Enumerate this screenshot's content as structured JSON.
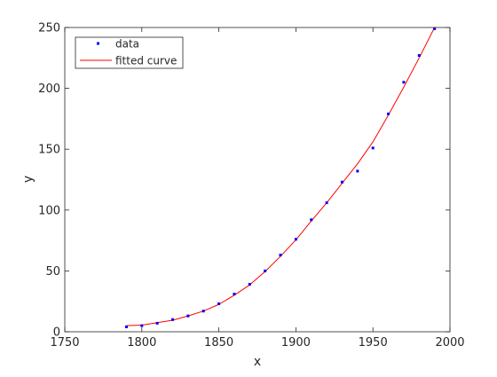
{
  "chart_data": {
    "type": "scatter",
    "xlabel": "x",
    "ylabel": "y",
    "xlim": [
      1750,
      2000
    ],
    "ylim": [
      0,
      250
    ],
    "xticks": [
      1750,
      1800,
      1850,
      1900,
      1950,
      2000
    ],
    "yticks": [
      0,
      50,
      100,
      150,
      200,
      250
    ],
    "grid": false,
    "legend_location": "top-left",
    "series": [
      {
        "name": "data",
        "kind": "markers",
        "color": "#0000ff",
        "x": [
          1790,
          1800,
          1810,
          1820,
          1830,
          1840,
          1850,
          1860,
          1870,
          1880,
          1890,
          1900,
          1910,
          1920,
          1930,
          1940,
          1950,
          1960,
          1970,
          1980,
          1990
        ],
        "y": [
          4,
          5,
          7,
          10,
          13,
          17,
          23,
          31,
          39,
          50,
          63,
          76,
          92,
          106,
          123,
          132,
          151,
          179,
          205,
          227,
          249
        ]
      },
      {
        "name": "fitted curve",
        "kind": "line",
        "color": "#ff0000",
        "x": [
          1790,
          1800,
          1810,
          1820,
          1830,
          1840,
          1850,
          1860,
          1870,
          1880,
          1890,
          1900,
          1910,
          1920,
          1930,
          1940,
          1950,
          1960,
          1970,
          1980,
          1990
        ],
        "y": [
          5,
          5.5,
          7.5,
          9.5,
          13,
          17,
          22.5,
          30,
          38.5,
          49.5,
          62,
          75.5,
          91,
          106,
          122,
          138,
          156,
          178,
          201,
          225,
          250
        ]
      }
    ]
  }
}
